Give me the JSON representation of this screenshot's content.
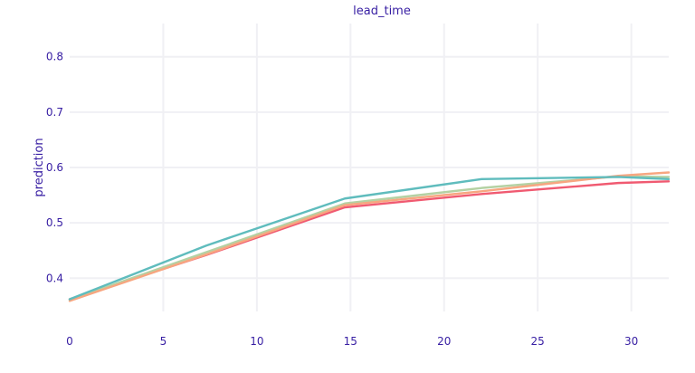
{
  "colors": {
    "text": "#371ea3",
    "grid": "#f0f0f4",
    "background": "#ffffff"
  },
  "chart_data": {
    "type": "line",
    "title": "lead_time",
    "xlabel": "",
    "ylabel": "prediction",
    "xlim": [
      0,
      32
    ],
    "ylim": [
      0.34,
      0.86
    ],
    "x_ticks": [
      0,
      5,
      10,
      15,
      20,
      25,
      30
    ],
    "y_ticks": [
      0.4,
      0.5,
      0.6,
      0.7,
      0.8
    ],
    "grid": true,
    "legend": "none",
    "series": [
      {
        "color": "#f05a71",
        "x": [
          0,
          7.3,
          14.7,
          22,
          29.3,
          32
        ],
        "y": [
          0.362,
          0.442,
          0.528,
          0.552,
          0.572,
          0.575
        ]
      },
      {
        "color": "#b4d1a3",
        "x": [
          0,
          7.3,
          14.7,
          22,
          29.3,
          32
        ],
        "y": [
          0.361,
          0.447,
          0.535,
          0.563,
          0.584,
          0.583
        ]
      },
      {
        "color": "#f7a680",
        "x": [
          0,
          7.3,
          14.7,
          22,
          29.3,
          32
        ],
        "y": [
          0.359,
          0.443,
          0.532,
          0.557,
          0.585,
          0.591
        ]
      },
      {
        "color": "#5fbcbd",
        "x": [
          0,
          7.3,
          14.7,
          22,
          29.3,
          32
        ],
        "y": [
          0.362,
          0.459,
          0.544,
          0.579,
          0.583,
          0.579
        ]
      }
    ]
  }
}
